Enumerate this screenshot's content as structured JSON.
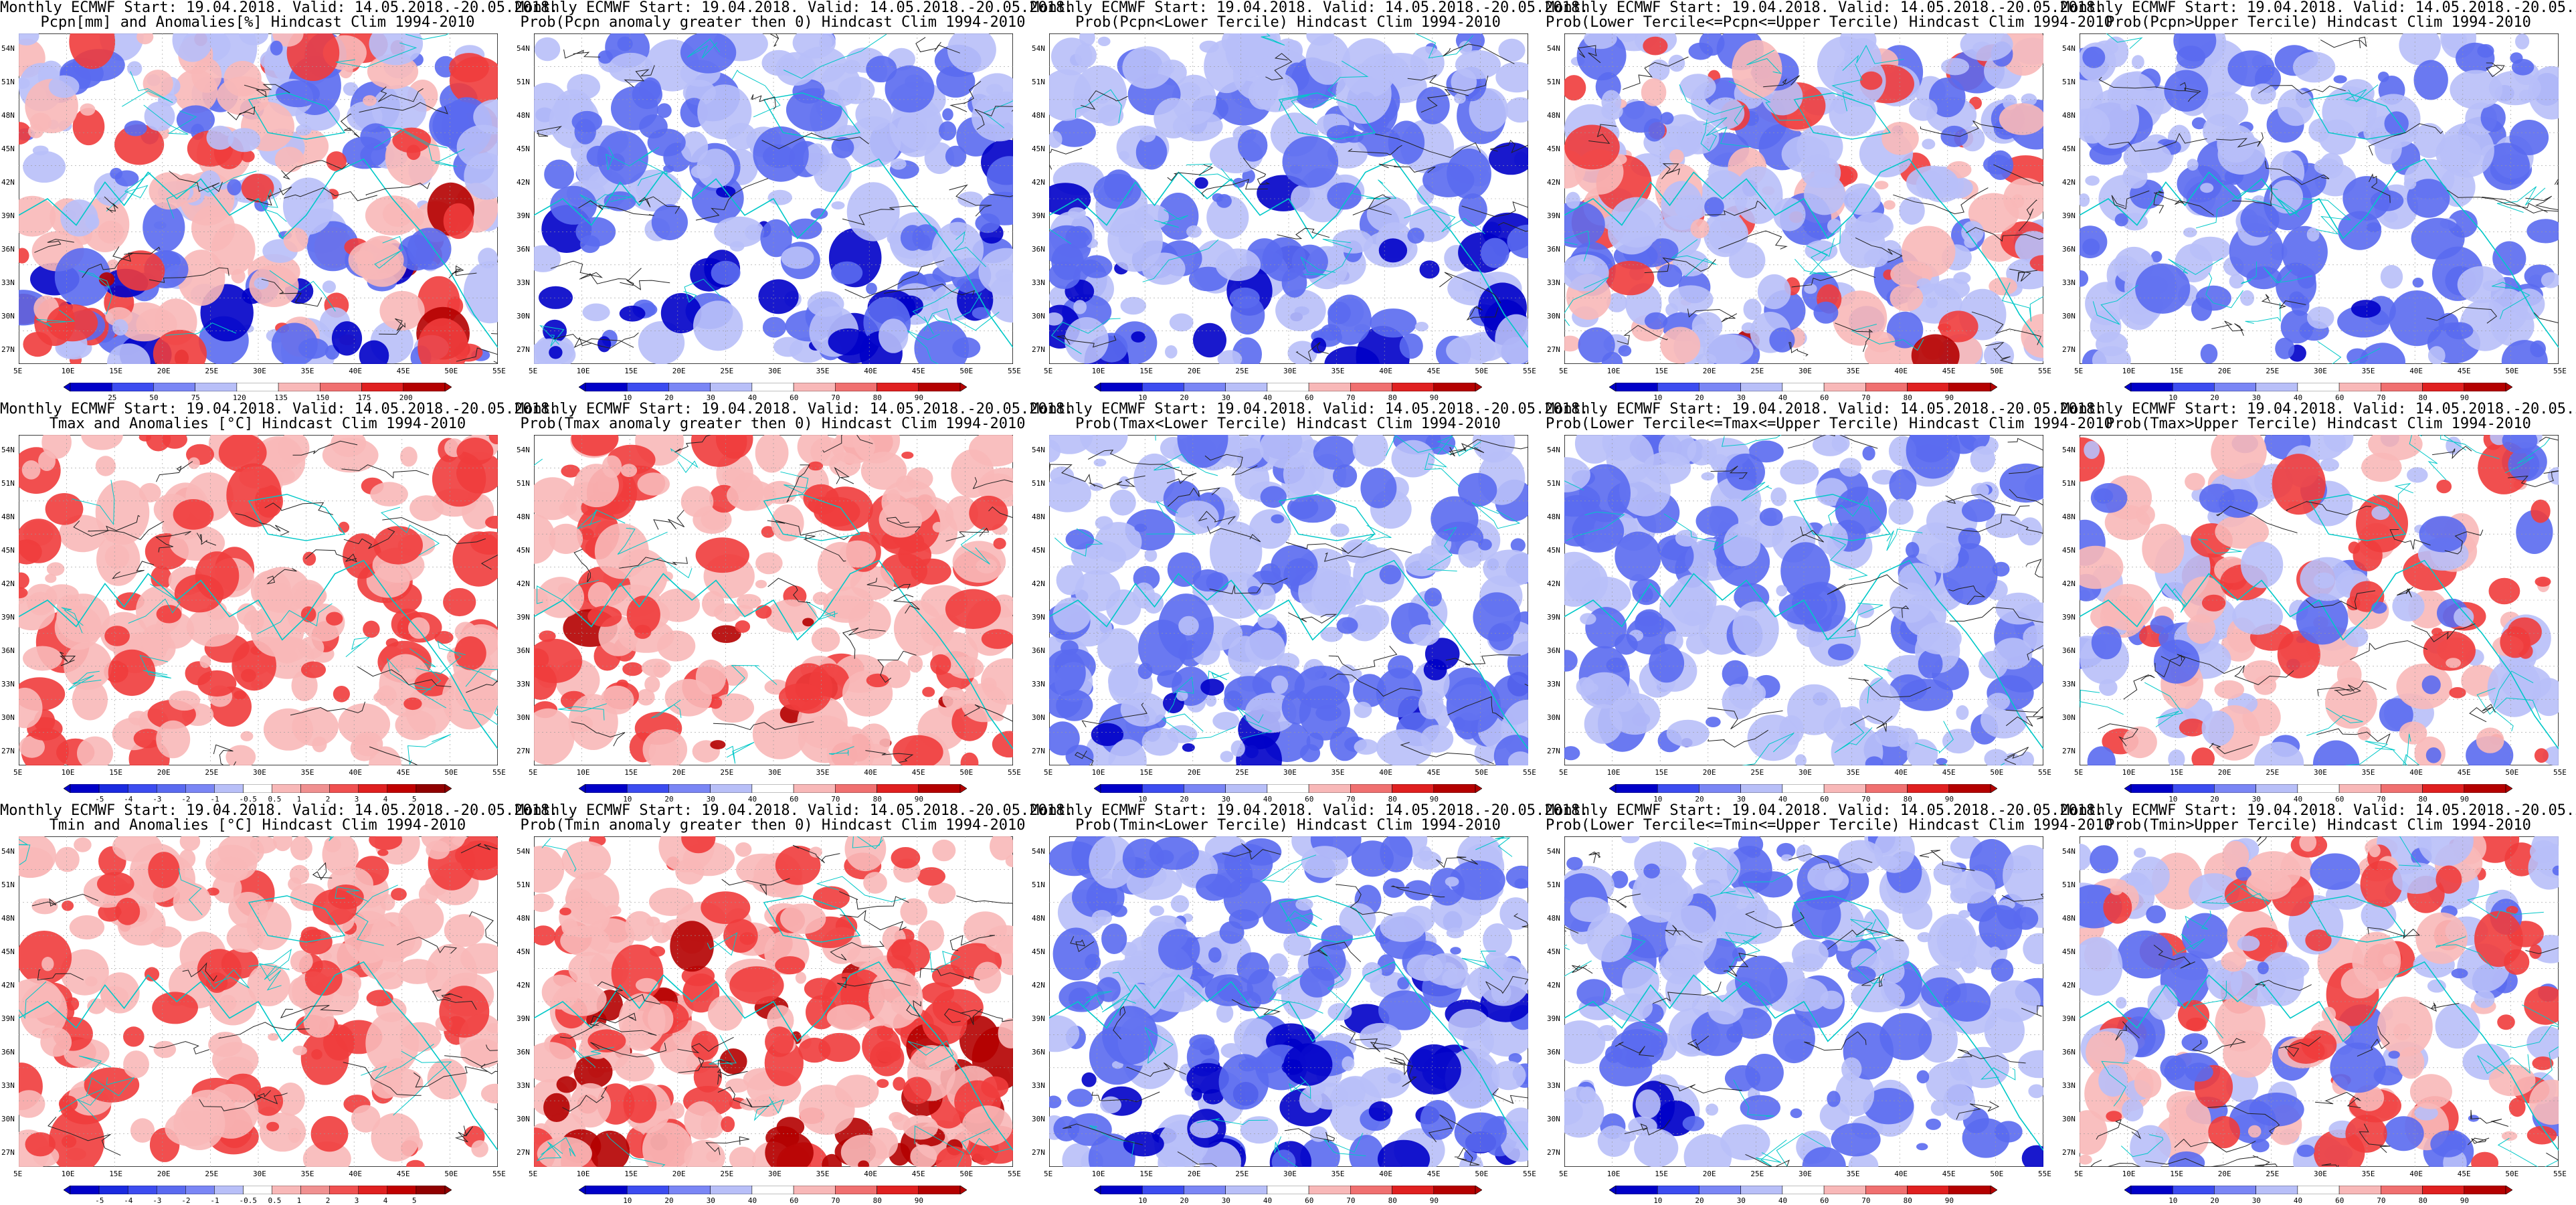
{
  "common": {
    "line1": "Monthly ECMWF Start: 19.04.2018. Valid: 14.05.2018.-20.05.2018."
  },
  "lat_labels": [
    "54N",
    "51N",
    "48N",
    "45N",
    "42N",
    "39N",
    "36N",
    "33N",
    "30N",
    "27N"
  ],
  "lon_labels": [
    "5E",
    "10E",
    "15E",
    "20E",
    "25E",
    "30E",
    "35E",
    "40E",
    "45E",
    "50E",
    "55E"
  ],
  "colors": {
    "coast": "#00c8c8",
    "contour": "#222222",
    "blue_dark": "#0000c8",
    "blue_mid": "#5a6af0",
    "blue_light": "#b8bff8",
    "red_dark": "#b40000",
    "red_mid": "#f03c3c",
    "red_light": "#f8b8b8"
  },
  "colorbars": {
    "pcpn_anom": {
      "labels": [
        "25",
        "50",
        "75",
        "120",
        "135",
        "150",
        "175",
        "200"
      ],
      "colors": [
        "#0000c8",
        "#3c4cf0",
        "#7a86f5",
        "#b8bff8",
        "#ffffff",
        "#f8b8b8",
        "#f07070",
        "#e02020",
        "#b40000"
      ]
    },
    "temp_anom": {
      "labels": [
        "-5",
        "-4",
        "-3",
        "-2",
        "-1",
        "-0.5",
        "0.5",
        "1",
        "2",
        "3",
        "4",
        "5"
      ],
      "colors": [
        "#0000c8",
        "#1a2ae0",
        "#3c4cf0",
        "#5a6af0",
        "#7a86f5",
        "#b8bff8",
        "#ffffff",
        "#f8b8b8",
        "#f09090",
        "#f05050",
        "#e02020",
        "#c00000",
        "#900000"
      ]
    },
    "prob": {
      "labels": [
        "10",
        "20",
        "30",
        "40",
        "60",
        "70",
        "80",
        "90"
      ],
      "colors": [
        "#0000c8",
        "#3c4cf0",
        "#7a86f5",
        "#b8bff8",
        "#ffffff",
        "#f8b8b8",
        "#f07070",
        "#e02020",
        "#b40000"
      ]
    }
  },
  "panels": [
    {
      "line2": "Pcpn[mm] and Anomalies[%] Hindcast Clim 1994-2010",
      "cbar": "pcpn_anom",
      "fields": {
        "blue": 0.55,
        "red": 0.25,
        "dark": 0.3
      }
    },
    {
      "line2": "Prob(Pcpn anomaly greater then 0) Hindcast Clim 1994-2010",
      "cbar": "prob",
      "fields": {
        "blue": 0.8,
        "red": 0.0,
        "dark": 0.45
      }
    },
    {
      "line2": "Prob(Pcpn<Lower Tercile) Hindcast Clim 1994-2010",
      "cbar": "prob",
      "fields": {
        "blue": 0.85,
        "red": 0.0,
        "dark": 0.5
      }
    },
    {
      "line2": "Prob(Lower Tercile<=Pcpn<=Upper Tercile) Hindcast Clim 1994-2010",
      "cbar": "prob",
      "fields": {
        "blue": 0.7,
        "red": 0.12,
        "dark": 0.15
      }
    },
    {
      "line2": "Prob(Pcpn>Upper Tercile) Hindcast Clim 1994-2010",
      "cbar": "prob",
      "fields": {
        "blue": 0.75,
        "red": 0.0,
        "dark": 0.2
      }
    },
    {
      "line2": "Tmax and Anomalies [°C] Hindcast Clim 1994-2010",
      "cbar": "temp_anom",
      "fields": {
        "blue": 0.0,
        "red": 0.5,
        "dark": 0.1
      }
    },
    {
      "line2": "Prob(Tmax anomaly greater then 0) Hindcast Clim 1994-2010",
      "cbar": "prob",
      "fields": {
        "blue": 0.0,
        "red": 0.65,
        "dark": 0.2
      }
    },
    {
      "line2": "Prob(Tmax<Lower Tercile) Hindcast Clim 1994-2010",
      "cbar": "prob",
      "fields": {
        "blue": 0.9,
        "red": 0.0,
        "dark": 0.35
      }
    },
    {
      "line2": "Prob(Lower Tercile<=Tmax<=Upper Tercile) Hindcast Clim 1994-2010",
      "cbar": "prob",
      "fields": {
        "blue": 0.8,
        "red": 0.0,
        "dark": 0.2
      }
    },
    {
      "line2": "Prob(Tmax>Upper Tercile) Hindcast Clim 1994-2010",
      "cbar": "prob",
      "fields": {
        "blue": 0.35,
        "red": 0.15,
        "dark": 0.1
      }
    },
    {
      "line2": "Tmin and Anomalies [°C] Hindcast Clim 1994-2010",
      "cbar": "temp_anom",
      "fields": {
        "blue": 0.0,
        "red": 0.55,
        "dark": 0.1
      }
    },
    {
      "line2": "Prob(Tmin anomaly greater then 0) Hindcast Clim 1994-2010",
      "cbar": "prob",
      "fields": {
        "blue": 0.0,
        "red": 0.75,
        "dark": 0.4
      }
    },
    {
      "line2": "Prob(Tmin<Lower Tercile) Hindcast Clim 1994-2010",
      "cbar": "prob",
      "fields": {
        "blue": 0.95,
        "red": 0.0,
        "dark": 0.55
      }
    },
    {
      "line2": "Prob(Lower Tercile<=Tmin<=Upper Tercile) Hindcast Clim 1994-2010",
      "cbar": "prob",
      "fields": {
        "blue": 0.8,
        "red": 0.0,
        "dark": 0.2
      }
    },
    {
      "line2": "Prob(Tmin>Upper Tercile) Hindcast Clim 1994-2010",
      "cbar": "prob",
      "fields": {
        "blue": 0.4,
        "red": 0.2,
        "dark": 0.1
      }
    }
  ]
}
